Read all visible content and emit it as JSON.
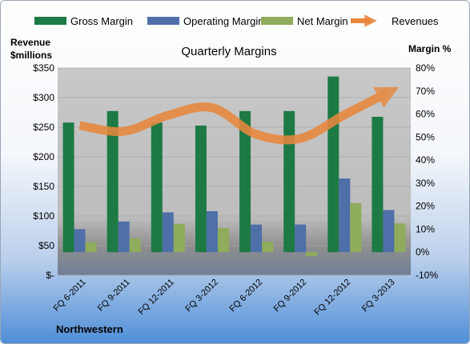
{
  "chart_data": {
    "type": "bar",
    "title": "Quarterly Margins",
    "left_axis_label_line1": "Revenue",
    "left_axis_label_line2": "$millions",
    "right_axis_label": "Margin %",
    "footer_label": "Northwestern",
    "categories": [
      "FQ 6-2011",
      "FQ 9-2011",
      "FQ 12-2011",
      "FQ 3-2012",
      "FQ 6-2012",
      "FQ 9-2012",
      "FQ 12-2012",
      "FQ 3-2013"
    ],
    "left_axis": {
      "ylim": [
        0,
        350
      ],
      "ticks": [
        0,
        50,
        100,
        150,
        200,
        250,
        300,
        350
      ],
      "tick_labels": [
        "$-",
        "$50",
        "$100",
        "$150",
        "$200",
        "$250",
        "$300",
        "$350"
      ]
    },
    "right_axis": {
      "ylim": [
        -10,
        80
      ],
      "ticks": [
        -10,
        0,
        10,
        20,
        30,
        40,
        50,
        60,
        70,
        80
      ],
      "tick_labels": [
        "-10%",
        "0%",
        "10%",
        "20%",
        "30%",
        "40%",
        "50%",
        "60%",
        "70%",
        "80%"
      ]
    },
    "series": [
      {
        "name": "Gross Margin",
        "axis": "right",
        "kind": "bar",
        "color": "#1e7a45",
        "values": [
          56.3,
          61.3,
          56.3,
          55.0,
          61.3,
          61.3,
          76.3,
          58.8
        ]
      },
      {
        "name": "Operating Margin",
        "axis": "right",
        "kind": "bar",
        "color": "#4f6fa8",
        "values": [
          10.0,
          13.3,
          17.3,
          17.8,
          12.0,
          12.0,
          32.0,
          18.3
        ]
      },
      {
        "name": "Net Margin",
        "axis": "right",
        "kind": "bar",
        "color": "#8fac5c",
        "values": [
          4.3,
          6.0,
          12.3,
          10.5,
          4.5,
          -1.8,
          21.3,
          12.5
        ]
      },
      {
        "name": "Revenues",
        "axis": "left",
        "kind": "line",
        "color": "#e8873c",
        "values": [
          253,
          243,
          270,
          283,
          238,
          231,
          271,
          309
        ]
      }
    ],
    "legend_position": "top",
    "grid": true
  }
}
